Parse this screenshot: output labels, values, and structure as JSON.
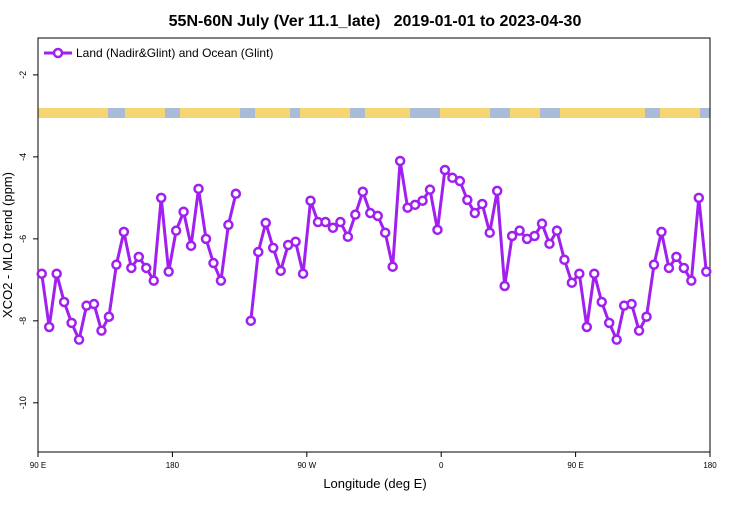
{
  "chart_data": {
    "type": "line",
    "title": "55N-60N July (Ver 11.1_late)   2019-01-01 to 2023-04-30",
    "x_label": "Longitude (deg E)",
    "y_label": "XCO2 - MLO trend (ppm)",
    "x": [
      92.5,
      97.5,
      102.5,
      107.5,
      112.5,
      117.5,
      122.5,
      127.5,
      132.5,
      137.5,
      142.5,
      147.5,
      152.5,
      157.5,
      162.5,
      167.5,
      172.5,
      177.5,
      182.5,
      187.5,
      192.5,
      197.5,
      202.5,
      207.5,
      212.5,
      217.5,
      222.5,
      227.5,
      232.5,
      237.5,
      242.5,
      247.5,
      252.5,
      257.5,
      262.5,
      267.5,
      272.5,
      277.5,
      282.5,
      287.5,
      292.5,
      297.5,
      302.5,
      307.5,
      312.5,
      317.5,
      322.5,
      327.5,
      332.5,
      337.5,
      342.5,
      347.5,
      352.5,
      357.5,
      362.5,
      367.5,
      372.5,
      377.5,
      382.5,
      387.5,
      392.5,
      397.5,
      402.5,
      407.5,
      412.5,
      417.5,
      422.5,
      427.5,
      432.5,
      437.5,
      442.5,
      447.5,
      452.5,
      457.5,
      462.5,
      467.5,
      472.5,
      477.5,
      482.5,
      487.5,
      492.5,
      497.5,
      502.5,
      507.5,
      512.5,
      517.5,
      522.5,
      527.5,
      532.5,
      537.5
    ],
    "series": [
      {
        "name": "Land (Nadir&Glint) and Ocean (Glint)",
        "color": "#a020f0",
        "values": [
          -6.85,
          -8.15,
          -6.85,
          -7.54,
          -8.05,
          -8.46,
          -7.63,
          -7.59,
          -8.24,
          -7.9,
          -6.63,
          -5.83,
          -6.71,
          -6.44,
          -6.71,
          -7.02,
          -5.0,
          -6.8,
          -5.8,
          -5.34,
          -6.17,
          -4.78,
          -6.0,
          -6.59,
          -7.02,
          -5.66,
          -4.9,
          null,
          -8.0,
          -6.32,
          -5.61,
          -6.22,
          -6.78,
          -6.15,
          -6.07,
          -6.85,
          -5.07,
          -5.59,
          -5.59,
          -5.73,
          -5.59,
          -5.95,
          -5.41,
          -4.85,
          -5.37,
          -5.44,
          -5.85,
          -6.68,
          -4.1,
          -5.24,
          -5.17,
          -5.07,
          -4.8,
          -5.78,
          -4.32,
          -4.51,
          -4.59,
          -5.05,
          -5.37,
          -5.15,
          -5.85,
          -4.83,
          -7.15,
          -5.93,
          -5.8,
          -6.0,
          -5.93,
          -5.63,
          -6.12,
          -5.8,
          -6.51,
          -7.07,
          -6.85,
          -8.15,
          -6.85,
          -7.54,
          -8.05,
          -8.46,
          -7.63,
          -7.59,
          -8.24,
          -7.9,
          -6.63,
          -5.83,
          -6.71,
          -6.44,
          -6.71,
          -7.02,
          -5.0,
          -6.8
        ]
      }
    ],
    "xlim": [
      90,
      540
    ],
    "xticks": [
      {
        "value": 90,
        "label": "90 E"
      },
      180,
      {
        "value": 270,
        "label": "90 W"
      },
      {
        "value": 360,
        "label": "0"
      },
      {
        "value": 450,
        "label": "90 E"
      },
      {
        "value": 540,
        "label": "180"
      }
    ],
    "ylim": [
      -11.2,
      -1.1
    ],
    "yticks": [
      -10,
      -8,
      -6,
      -4,
      -2
    ],
    "legend": "top-left"
  }
}
